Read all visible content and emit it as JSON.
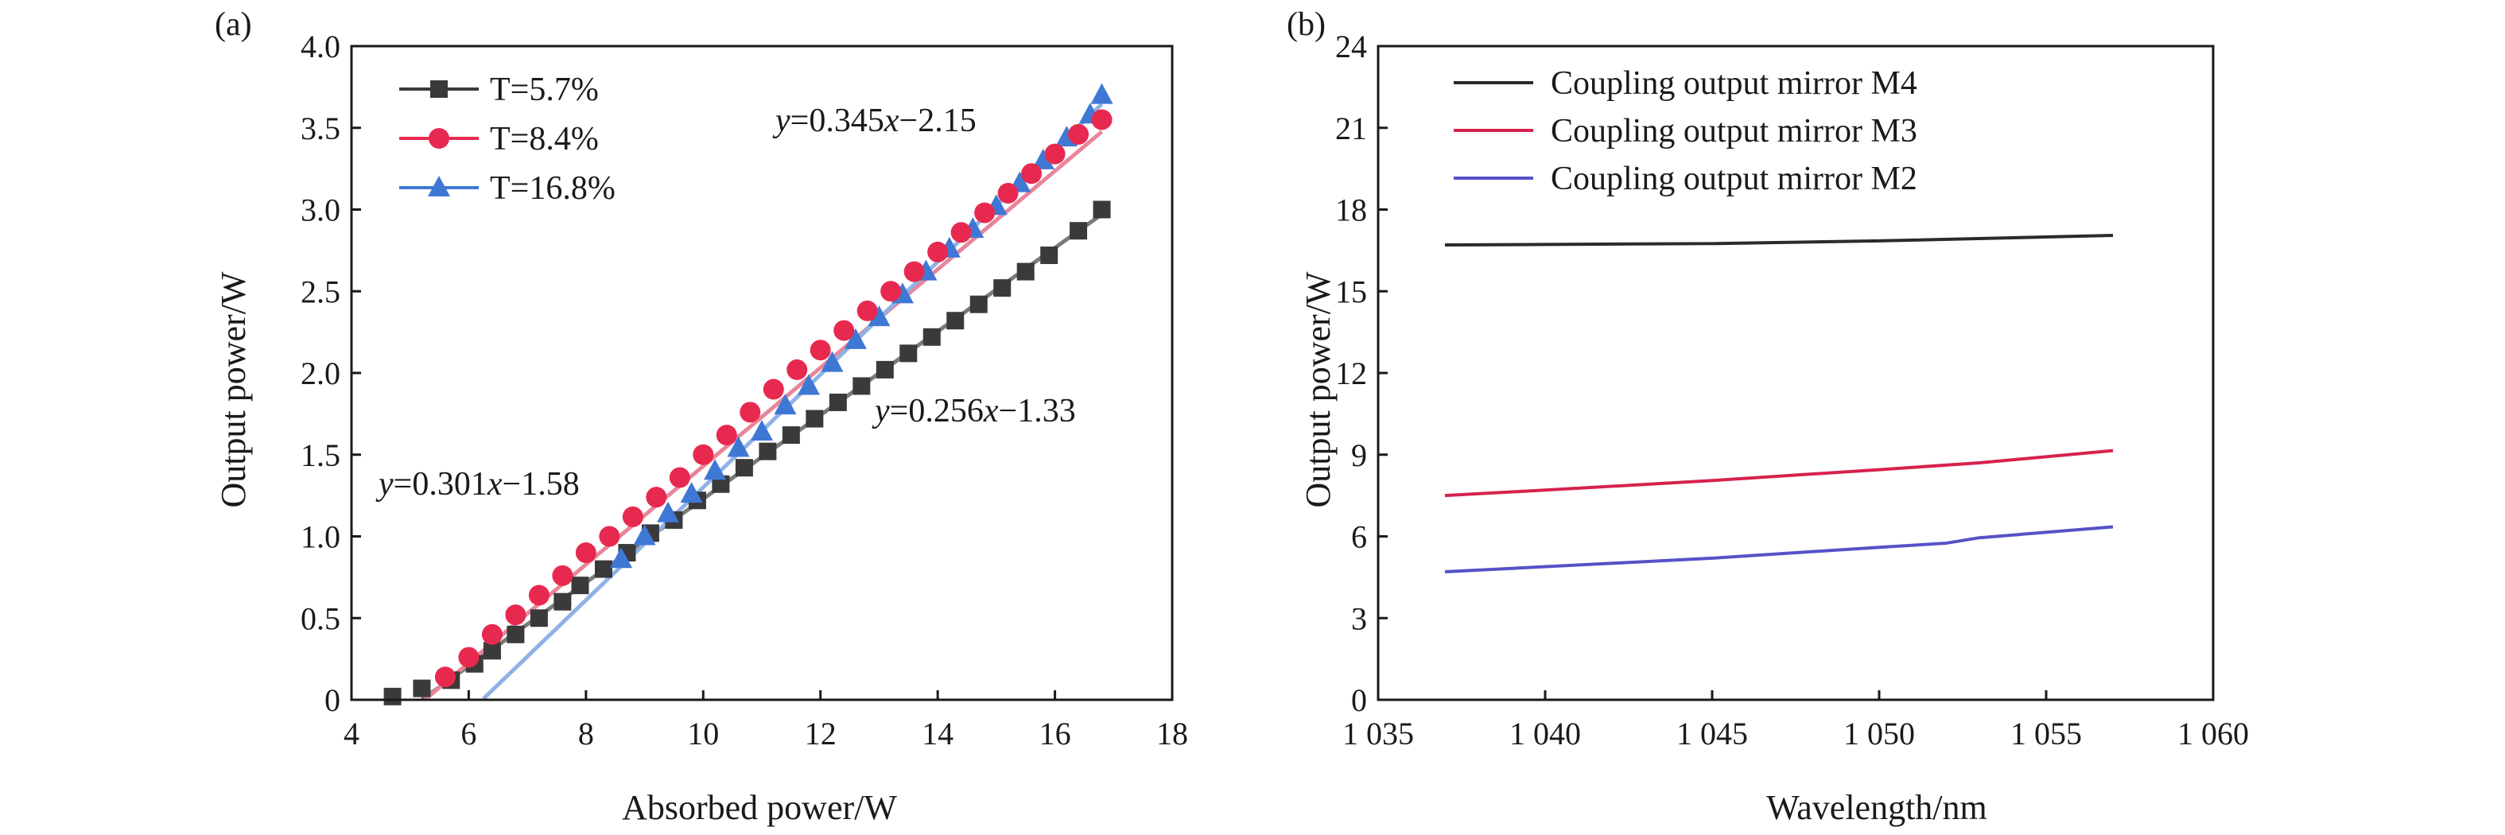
{
  "colors": {
    "t57": "#3a3a3a",
    "t84": "#e8294f",
    "t168": "#3f78d4",
    "m4": "#2b2b2b",
    "m3": "#d6224c",
    "m2": "#5552c8",
    "fit_t57": "#7a7a7a",
    "fit_t84": "#e8859a",
    "fit_t168": "#8fb2e6",
    "eq_t57": "#3a3a3a",
    "eq_t84": "#d6224c",
    "eq_t168": "#4d55a8"
  },
  "chart_data": [
    {
      "panel": "(a)",
      "type": "scatter",
      "xlabel": "Absorbed power/W",
      "ylabel": "Output power/W",
      "xlim": [
        4,
        18
      ],
      "ylim": [
        0,
        4.0
      ],
      "xticks": [
        "4",
        "6",
        "8",
        "10",
        "12",
        "14",
        "16",
        "18"
      ],
      "yticks": [
        "0",
        "0.5",
        "1.0",
        "1.5",
        "2.0",
        "2.5",
        "3.0",
        "3.5",
        "4.0"
      ],
      "grid": false,
      "legend": "top-left",
      "series": [
        {
          "name": "T=5.7%",
          "marker": "square",
          "x": [
            4.7,
            5.2,
            5.7,
            6.1,
            6.4,
            6.8,
            7.2,
            7.6,
            7.9,
            8.3,
            8.7,
            9.1,
            9.5,
            9.9,
            10.3,
            10.7,
            11.1,
            11.5,
            11.9,
            12.3,
            12.7,
            13.1,
            13.5,
            13.9,
            14.3,
            14.7,
            15.1,
            15.5,
            15.9,
            16.4,
            16.8
          ],
          "y": [
            0.02,
            0.07,
            0.12,
            0.22,
            0.3,
            0.4,
            0.5,
            0.6,
            0.7,
            0.8,
            0.9,
            1.02,
            1.1,
            1.22,
            1.32,
            1.42,
            1.52,
            1.62,
            1.72,
            1.82,
            1.92,
            2.02,
            2.12,
            2.22,
            2.32,
            2.42,
            2.52,
            2.62,
            2.72,
            2.87,
            3.0
          ]
        },
        {
          "name": "T=8.4%",
          "marker": "circle",
          "x": [
            5.6,
            6.0,
            6.4,
            6.8,
            7.2,
            7.6,
            8.0,
            8.4,
            8.8,
            9.2,
            9.6,
            10.0,
            10.4,
            10.8,
            11.2,
            11.6,
            12.0,
            12.4,
            12.8,
            13.2,
            13.6,
            14.0,
            14.4,
            14.8,
            15.2,
            15.6,
            16.0,
            16.4,
            16.8
          ],
          "y": [
            0.14,
            0.26,
            0.4,
            0.52,
            0.64,
            0.76,
            0.9,
            1.0,
            1.12,
            1.24,
            1.36,
            1.5,
            1.62,
            1.76,
            1.9,
            2.02,
            2.14,
            2.26,
            2.38,
            2.5,
            2.62,
            2.74,
            2.86,
            2.98,
            3.1,
            3.22,
            3.34,
            3.46,
            3.55
          ]
        },
        {
          "name": "T=16.8%",
          "marker": "triangle",
          "x": [
            8.6,
            9.0,
            9.4,
            9.8,
            10.2,
            10.6,
            11.0,
            11.4,
            11.8,
            12.2,
            12.6,
            13.0,
            13.4,
            13.8,
            14.2,
            14.6,
            15.0,
            15.4,
            15.8,
            16.2,
            16.6,
            16.8
          ],
          "y": [
            0.86,
            1.0,
            1.14,
            1.26,
            1.4,
            1.54,
            1.64,
            1.8,
            1.92,
            2.06,
            2.2,
            2.34,
            2.48,
            2.62,
            2.76,
            2.88,
            3.02,
            3.16,
            3.3,
            3.44,
            3.58,
            3.7
          ]
        }
      ],
      "fits": [
        {
          "series": "T=5.7%",
          "equation": "y=0.256x−1.33",
          "slope": 0.256,
          "intercept": -1.33,
          "x_range": [
            5.2,
            16.8
          ]
        },
        {
          "series": "T=8.4%",
          "equation": "y=0.301x−1.58",
          "slope": 0.301,
          "intercept": -1.58,
          "x_range": [
            5.25,
            16.8
          ]
        },
        {
          "series": "T=16.8%",
          "equation": "y=0.345x−2.15",
          "slope": 0.345,
          "intercept": -2.15,
          "x_range": [
            6.25,
            16.8
          ]
        }
      ]
    },
    {
      "panel": "(b)",
      "type": "line",
      "xlabel": "Wavelength/nm",
      "ylabel": "Output power/W",
      "xlim": [
        1035,
        1060
      ],
      "ylim": [
        0,
        24
      ],
      "xticks": [
        "1 035",
        "1 040",
        "1 045",
        "1 050",
        "1 055",
        "1 060"
      ],
      "yticks": [
        "0",
        "3",
        "6",
        "9",
        "12",
        "15",
        "18",
        "21",
        "24"
      ],
      "grid": false,
      "legend": "top-left",
      "series": [
        {
          "name": "Coupling output mirror M4",
          "x": [
            1037,
            1045,
            1050,
            1057
          ],
          "y": [
            16.7,
            16.75,
            16.85,
            17.05
          ]
        },
        {
          "name": "Coupling output mirror M3",
          "x": [
            1037,
            1040,
            1045,
            1050,
            1053,
            1057
          ],
          "y": [
            7.5,
            7.7,
            8.05,
            8.45,
            8.7,
            9.15
          ]
        },
        {
          "name": "Coupling output mirror M2",
          "x": [
            1037,
            1045,
            1050,
            1052,
            1053,
            1057
          ],
          "y": [
            4.7,
            5.2,
            5.6,
            5.75,
            5.95,
            6.35
          ]
        }
      ]
    }
  ]
}
